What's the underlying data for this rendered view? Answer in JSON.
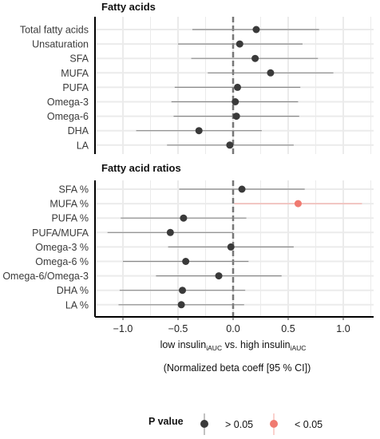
{
  "chart_data": {
    "type": "forest",
    "x_axis": {
      "ticks": [
        -1.0,
        -0.5,
        0.0,
        0.5,
        1.0
      ],
      "tick_labels": [
        "−1.0",
        "−0.5",
        "0.0",
        "0.5",
        "1.0"
      ],
      "range": [
        -1.25,
        1.25
      ],
      "label_left": "low insulin",
      "label_left_sub": "iAUC",
      "label_mid": " vs. high insulin",
      "label_right_sub": "iAUC",
      "label_line2": "(Normalized beta coeff [95 % CI])"
    },
    "panels": [
      {
        "title": "Fatty acids",
        "rows": [
          {
            "label": "Total fatty acids",
            "estimate": 0.21,
            "lo": -0.37,
            "hi": 0.78,
            "significant": false
          },
          {
            "label": "Unsaturation",
            "estimate": 0.06,
            "lo": -0.5,
            "hi": 0.63,
            "significant": false
          },
          {
            "label": "SFA",
            "estimate": 0.2,
            "lo": -0.38,
            "hi": 0.77,
            "significant": false
          },
          {
            "label": "MUFA",
            "estimate": 0.34,
            "lo": -0.23,
            "hi": 0.91,
            "significant": false
          },
          {
            "label": "PUFA",
            "estimate": 0.04,
            "lo": -0.53,
            "hi": 0.61,
            "significant": false
          },
          {
            "label": "Omega-3",
            "estimate": 0.02,
            "lo": -0.56,
            "hi": 0.59,
            "significant": false
          },
          {
            "label": "Omega-6",
            "estimate": 0.03,
            "lo": -0.54,
            "hi": 0.6,
            "significant": false
          },
          {
            "label": "DHA",
            "estimate": -0.31,
            "lo": -0.88,
            "hi": 0.26,
            "significant": false
          },
          {
            "label": "LA",
            "estimate": -0.03,
            "lo": -0.6,
            "hi": 0.55,
            "significant": false
          }
        ]
      },
      {
        "title": "Fatty acid ratios",
        "rows": [
          {
            "label": "SFA %",
            "estimate": 0.08,
            "lo": -0.49,
            "hi": 0.65,
            "significant": false
          },
          {
            "label": "MUFA %",
            "estimate": 0.59,
            "lo": 0.01,
            "hi": 1.17,
            "significant": true
          },
          {
            "label": "PUFA %",
            "estimate": -0.45,
            "lo": -1.02,
            "hi": 0.12,
            "significant": false
          },
          {
            "label": "PUFA/MUFA",
            "estimate": -0.57,
            "lo": -1.14,
            "hi": 0.0,
            "significant": false
          },
          {
            "label": "Omega-3 %",
            "estimate": -0.02,
            "lo": -0.59,
            "hi": 0.55,
            "significant": false
          },
          {
            "label": "Omega-6 %",
            "estimate": -0.43,
            "lo": -1.0,
            "hi": 0.14,
            "significant": false
          },
          {
            "label": "Omega-6/Omega-3",
            "estimate": -0.13,
            "lo": -0.7,
            "hi": 0.44,
            "significant": false
          },
          {
            "label": "DHA %",
            "estimate": -0.46,
            "lo": -1.03,
            "hi": 0.11,
            "significant": false
          },
          {
            "label": "LA %",
            "estimate": -0.47,
            "lo": -1.04,
            "hi": 0.1,
            "significant": false
          }
        ]
      }
    ],
    "legend": {
      "title": "P value",
      "items": [
        {
          "label": "> 0.05",
          "color": "#3a3a3a"
        },
        {
          "label": "< 0.05",
          "color": "#f07a70"
        }
      ]
    },
    "colors": {
      "nonsignificant": "#3a3a3a",
      "significant": "#f07a70",
      "ci_nonsignificant": "#8a8a8a",
      "ci_significant": "#f5b0aa",
      "grid": "#ebebeb",
      "reference_line": "#777777"
    }
  }
}
